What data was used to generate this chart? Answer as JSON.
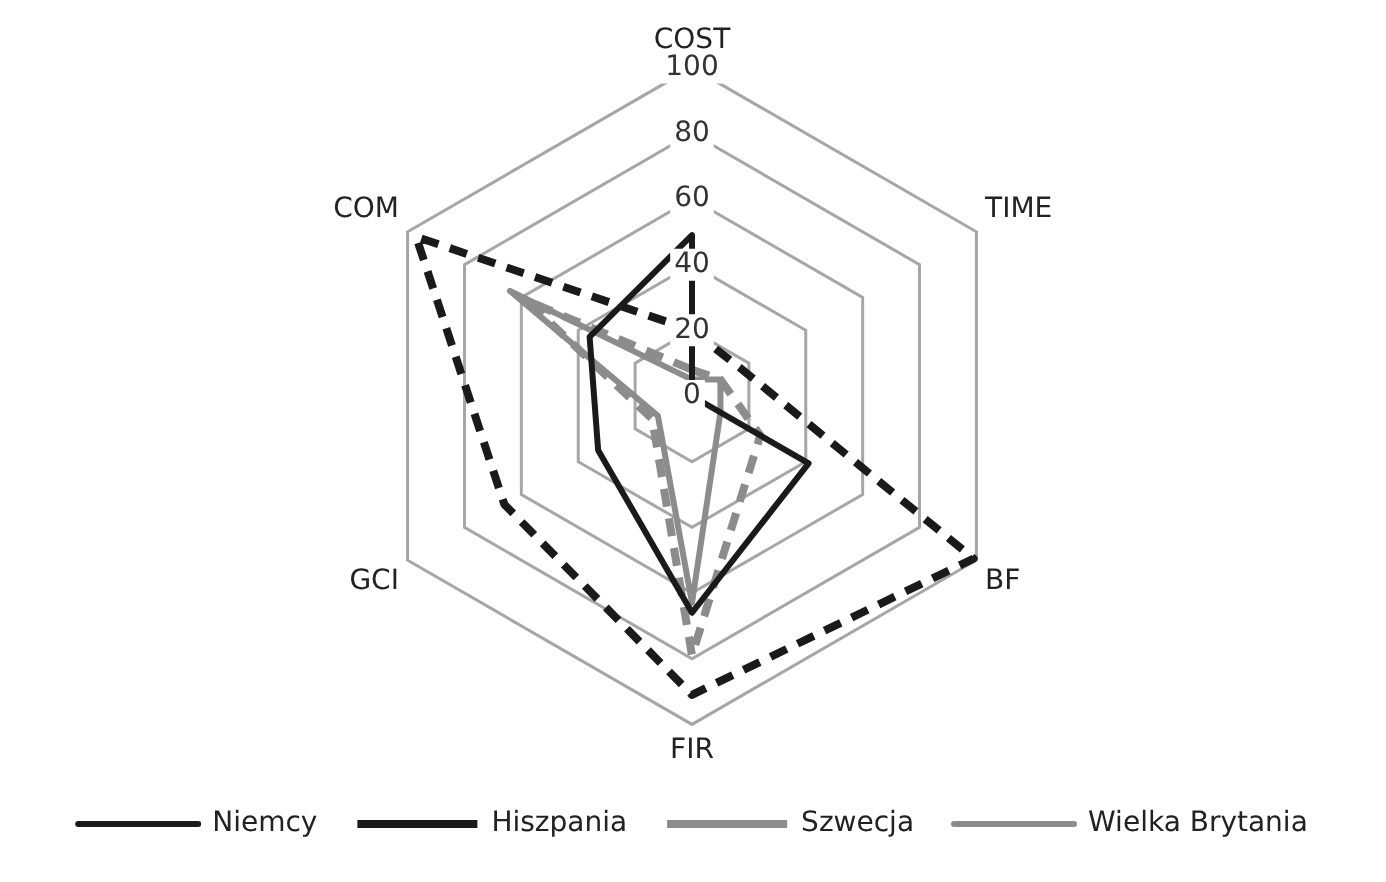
{
  "chart_data": {
    "type": "radar",
    "categories": [
      "COST",
      "TIME",
      "BF",
      "FIR",
      "GCI",
      "COM"
    ],
    "ylim": [
      0,
      100
    ],
    "yticks": [
      0,
      20,
      40,
      60,
      80,
      100
    ],
    "grid": true,
    "legend": "bottom",
    "marker": "none",
    "series": [
      {
        "name": "Niemcy",
        "color": "#1a1a1a",
        "line_style": "solid",
        "values": [
          49,
          0,
          41,
          66,
          33,
          36
        ]
      },
      {
        "name": "Hiszpania",
        "color": "#1a1a1a",
        "line_style": "dashed",
        "values": [
          20,
          17,
          99,
          91,
          66,
          97
        ]
      },
      {
        "name": "Szwecja",
        "color": "#8c8c8c",
        "line_style": "dashed",
        "values": [
          8,
          10,
          24,
          79,
          14,
          58
        ]
      },
      {
        "name": "Wielka Brytania",
        "color": "#8c8c8c",
        "line_style": "solid",
        "values": [
          5,
          10,
          10,
          63,
          12,
          64
        ]
      }
    ]
  }
}
